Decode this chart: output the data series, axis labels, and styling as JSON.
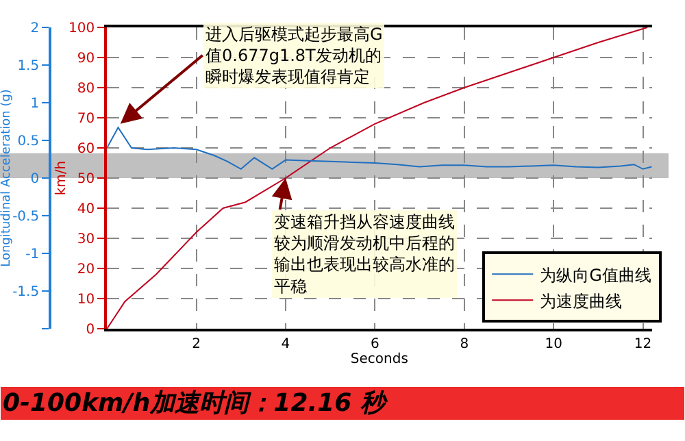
{
  "chart_data": {
    "type": "line",
    "title": "0-100km/h加速时间：12.16 秒",
    "xlabel": "Seconds",
    "ylabel": "km/h",
    "y2label": "Longitudinal Acceleration (g)",
    "xlim": [
      0,
      12.2
    ],
    "xticks": [
      2,
      4,
      6,
      8,
      10,
      12
    ],
    "ylim": [
      0,
      100
    ],
    "yticks": [
      0,
      10,
      20,
      30,
      40,
      50,
      60,
      70,
      80,
      90,
      100
    ],
    "y2lim": [
      -2,
      2
    ],
    "y2ticks": [
      {
        "value": -2,
        "label": null
      },
      -1.5,
      -1,
      -0.5,
      0,
      0.5,
      1,
      1.5,
      2
    ],
    "series": [
      {
        "name": "为纵向G值曲线",
        "color": "#1f6fc0",
        "axis": "y2",
        "x": [
          0,
          0.25,
          0.55,
          0.9,
          1.5,
          2,
          2.4,
          2.7,
          3,
          3.3,
          3.7,
          4,
          4.5,
          5,
          5.5,
          6,
          6.5,
          7,
          7.5,
          8,
          8.5,
          9,
          9.5,
          10,
          10.5,
          11,
          11.5,
          11.8,
          12,
          12.2
        ],
        "values": [
          0.4,
          0.67,
          0.4,
          0.38,
          0.4,
          0.38,
          0.3,
          0.22,
          0.12,
          0.27,
          0.12,
          0.24,
          0.23,
          0.22,
          0.21,
          0.2,
          0.18,
          0.15,
          0.17,
          0.17,
          0.15,
          0.15,
          0.16,
          0.17,
          0.15,
          0.14,
          0.16,
          0.18,
          0.12,
          0.15
        ]
      },
      {
        "name": "为速度曲线",
        "color": "#c00020",
        "x": [
          0,
          0.4,
          1.1,
          2,
          2.6,
          3.1,
          4,
          5,
          6,
          7.1,
          8,
          9,
          10,
          11,
          12.1
        ],
        "values": [
          0,
          9,
          18,
          32,
          40,
          42,
          50,
          60,
          68,
          75,
          80,
          85,
          90,
          95,
          100
        ]
      }
    ],
    "bands": [
      {
        "axis": "y2",
        "from": 0,
        "to": 0.33,
        "color": "#c0c0c0"
      }
    ],
    "annotations": [
      {
        "text": "进入后驱模式起步最高G值0.677g1.8T发动机的瞬时爆发表现值得肯定",
        "x": 0.3,
        "y": 68
      },
      {
        "text": "变速箱升挡从容速度曲线较为顺滑发动机中后程的输出也表现出较高水准的平稳",
        "x": 4,
        "y": 50
      }
    ],
    "grid": true,
    "line_style": "solid",
    "marker": "none",
    "legend": "bottom right"
  }
}
